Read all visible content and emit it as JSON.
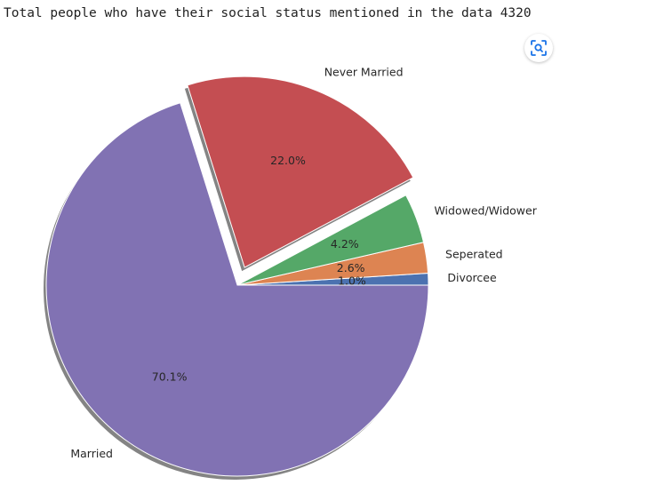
{
  "output": {
    "text": "Total people who have their social status mentioned in the data 4320"
  },
  "toolbar": {
    "lens_icon": "image-search-icon"
  },
  "chart_data": {
    "type": "pie",
    "title": "",
    "startangle": 0,
    "counterclock": true,
    "shadow": true,
    "slices": [
      {
        "label": "Divorcee",
        "percent": 1.0,
        "pct_label": "1.0%",
        "color": "#4c72b0",
        "explode": 0
      },
      {
        "label": "Seperated",
        "percent": 2.6,
        "pct_label": "2.6%",
        "color": "#dd8452",
        "explode": 0
      },
      {
        "label": "Widowed/Widower",
        "percent": 4.2,
        "pct_label": "4.2%",
        "color": "#55a868",
        "explode": 0
      },
      {
        "label": "Never Married",
        "percent": 22.0,
        "pct_label": "22.0%",
        "color": "#c44e52",
        "explode": 0.1
      },
      {
        "label": "Married",
        "percent": 70.1,
        "pct_label": "70.1%",
        "color": "#8172b3",
        "explode": 0
      }
    ]
  }
}
